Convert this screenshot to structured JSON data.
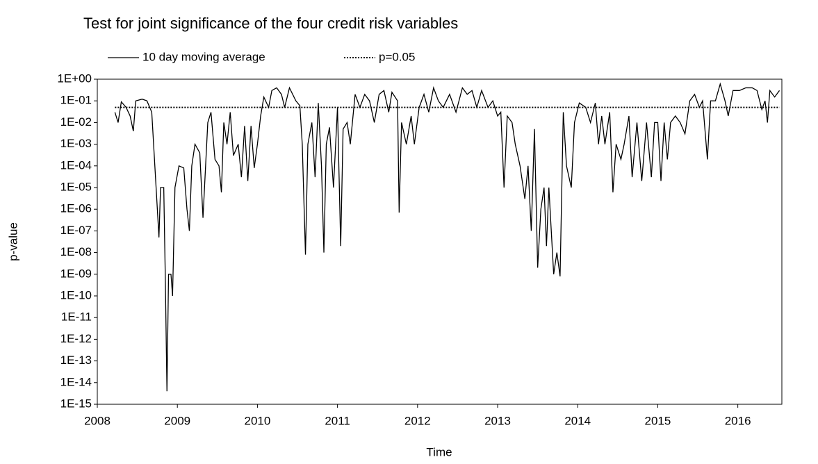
{
  "chart_data": {
    "type": "line",
    "title": "Test for joint significance of the four credit risk variables",
    "x_label": "Time",
    "y_label": "p-value",
    "log_y": true,
    "legend": "top",
    "xlim": [
      2008,
      2016.55
    ],
    "xticks": [
      2008,
      2009,
      2010,
      2011,
      2012,
      2013,
      2014,
      2015,
      2016
    ],
    "ylim": [
      1e-15,
      1
    ],
    "yticks": [
      {
        "value": 1e-15,
        "label": "1E-15"
      },
      {
        "value": 1e-14,
        "label": "1E-14"
      },
      {
        "value": 1e-13,
        "label": "1E-13"
      },
      {
        "value": 1e-12,
        "label": "1E-12"
      },
      {
        "value": 1e-11,
        "label": "1E-11"
      },
      {
        "value": 1e-10,
        "label": "1E-10"
      },
      {
        "value": 1e-09,
        "label": "1E-09"
      },
      {
        "value": 1e-08,
        "label": "1E-08"
      },
      {
        "value": 1e-07,
        "label": "1E-07"
      },
      {
        "value": 1e-06,
        "label": "1E-06"
      },
      {
        "value": 1e-05,
        "label": "1E-05"
      },
      {
        "value": 0.0001,
        "label": "1E-04"
      },
      {
        "value": 0.001,
        "label": "1E-03"
      },
      {
        "value": 0.01,
        "label": "1E-02"
      },
      {
        "value": 0.1,
        "label": "1E-01"
      },
      {
        "value": 1,
        "label": "1E+00"
      }
    ],
    "series": [
      {
        "name": "10 day moving average",
        "color": "#000000",
        "dash": "solid",
        "x": [
          2008.22,
          2008.26,
          2008.3,
          2008.36,
          2008.41,
          2008.45,
          2008.48,
          2008.56,
          2008.62,
          2008.68,
          2008.75,
          2008.77,
          2008.79,
          2008.83,
          2008.85,
          2008.87,
          2008.89,
          2008.92,
          2008.94,
          2008.97,
          2009.02,
          2009.08,
          2009.12,
          2009.15,
          2009.18,
          2009.22,
          2009.28,
          2009.32,
          2009.38,
          2009.42,
          2009.47,
          2009.52,
          2009.55,
          2009.58,
          2009.62,
          2009.66,
          2009.7,
          2009.76,
          2009.8,
          2009.84,
          2009.88,
          2009.92,
          2009.96,
          2010.0,
          2010.04,
          2010.08,
          2010.14,
          2010.18,
          2010.24,
          2010.3,
          2010.34,
          2010.4,
          2010.48,
          2010.53,
          2010.56,
          2010.6,
          2010.63,
          2010.68,
          2010.72,
          2010.76,
          2010.8,
          2010.83,
          2010.86,
          2010.9,
          2010.95,
          2011.0,
          2011.04,
          2011.07,
          2011.12,
          2011.16,
          2011.22,
          2011.28,
          2011.34,
          2011.4,
          2011.46,
          2011.52,
          2011.58,
          2011.64,
          2011.68,
          2011.75,
          2011.77,
          2011.8,
          2011.86,
          2011.92,
          2011.96,
          2012.02,
          2012.08,
          2012.14,
          2012.2,
          2012.26,
          2012.32,
          2012.4,
          2012.48,
          2012.56,
          2012.62,
          2012.68,
          2012.74,
          2012.8,
          2012.88,
          2012.94,
          2013.0,
          2013.04,
          2013.08,
          2013.12,
          2013.18,
          2013.22,
          2013.28,
          2013.34,
          2013.38,
          2013.42,
          2013.46,
          2013.5,
          2013.54,
          2013.58,
          2013.61,
          2013.64,
          2013.7,
          2013.74,
          2013.78,
          2013.82,
          2013.86,
          2013.92,
          2013.96,
          2014.02,
          2014.1,
          2014.16,
          2014.22,
          2014.26,
          2014.3,
          2014.34,
          2014.4,
          2014.44,
          2014.48,
          2014.54,
          2014.58,
          2014.64,
          2014.68,
          2014.74,
          2014.8,
          2014.86,
          2014.92,
          2014.96,
          2015.0,
          2015.04,
          2015.08,
          2015.12,
          2015.16,
          2015.22,
          2015.28,
          2015.34,
          2015.4,
          2015.46,
          2015.52,
          2015.56,
          2015.62,
          2015.66,
          2015.72,
          2015.78,
          2015.84,
          2015.88,
          2015.94,
          2016.02,
          2016.1,
          2016.18,
          2016.24,
          2016.3,
          2016.34,
          2016.37,
          2016.4,
          2016.46,
          2016.52
        ],
        "values": [
          0.03,
          0.01,
          0.09,
          0.05,
          0.02,
          0.004,
          0.1,
          0.12,
          0.1,
          0.03,
          1e-06,
          5e-08,
          1e-05,
          1e-05,
          5e-10,
          4e-15,
          1e-09,
          1e-09,
          1e-10,
          1e-05,
          0.0001,
          8e-05,
          1e-06,
          1e-07,
          0.0001,
          0.001,
          0.0004,
          4e-07,
          0.01,
          0.03,
          0.0002,
          0.0001,
          6e-06,
          0.01,
          0.001,
          0.03,
          0.0003,
          0.001,
          3e-05,
          0.007,
          2e-05,
          0.007,
          8e-05,
          0.001,
          0.02,
          0.15,
          0.05,
          0.3,
          0.4,
          0.2,
          0.05,
          0.4,
          0.1,
          0.06,
          0.001,
          8e-09,
          0.001,
          0.01,
          3e-05,
          0.08,
          0.0001,
          1e-08,
          0.001,
          0.006,
          1e-05,
          0.05,
          2e-08,
          0.005,
          0.01,
          0.001,
          0.2,
          0.05,
          0.2,
          0.1,
          0.01,
          0.2,
          0.3,
          0.03,
          0.25,
          0.1,
          7e-07,
          0.01,
          0.001,
          0.02,
          0.001,
          0.05,
          0.2,
          0.03,
          0.4,
          0.1,
          0.05,
          0.2,
          0.03,
          0.4,
          0.2,
          0.3,
          0.05,
          0.3,
          0.05,
          0.1,
          0.02,
          0.03,
          1e-05,
          0.02,
          0.01,
          0.001,
          0.0001,
          3e-06,
          0.0001,
          1e-07,
          0.005,
          2e-09,
          1e-06,
          1e-05,
          2e-08,
          1e-05,
          1e-09,
          1e-08,
          8e-10,
          0.03,
          0.0001,
          1e-05,
          0.01,
          0.08,
          0.05,
          0.01,
          0.08,
          0.001,
          0.02,
          0.001,
          0.03,
          6e-06,
          0.001,
          0.0002,
          0.001,
          0.02,
          3e-05,
          0.01,
          2e-05,
          0.01,
          3e-05,
          0.01,
          0.01,
          2e-05,
          0.01,
          0.0002,
          0.01,
          0.02,
          0.01,
          0.003,
          0.1,
          0.2,
          0.05,
          0.1,
          0.0002,
          0.1,
          0.1,
          0.6,
          0.1,
          0.02,
          0.3,
          0.3,
          0.4,
          0.4,
          0.3,
          0.04,
          0.1,
          0.01,
          0.3,
          0.15,
          0.3
        ]
      },
      {
        "name": "p=0.05",
        "color": "#000000",
        "dash": "dotted",
        "x": [
          2008.22,
          2016.52
        ],
        "values": [
          0.05,
          0.05
        ]
      }
    ]
  }
}
